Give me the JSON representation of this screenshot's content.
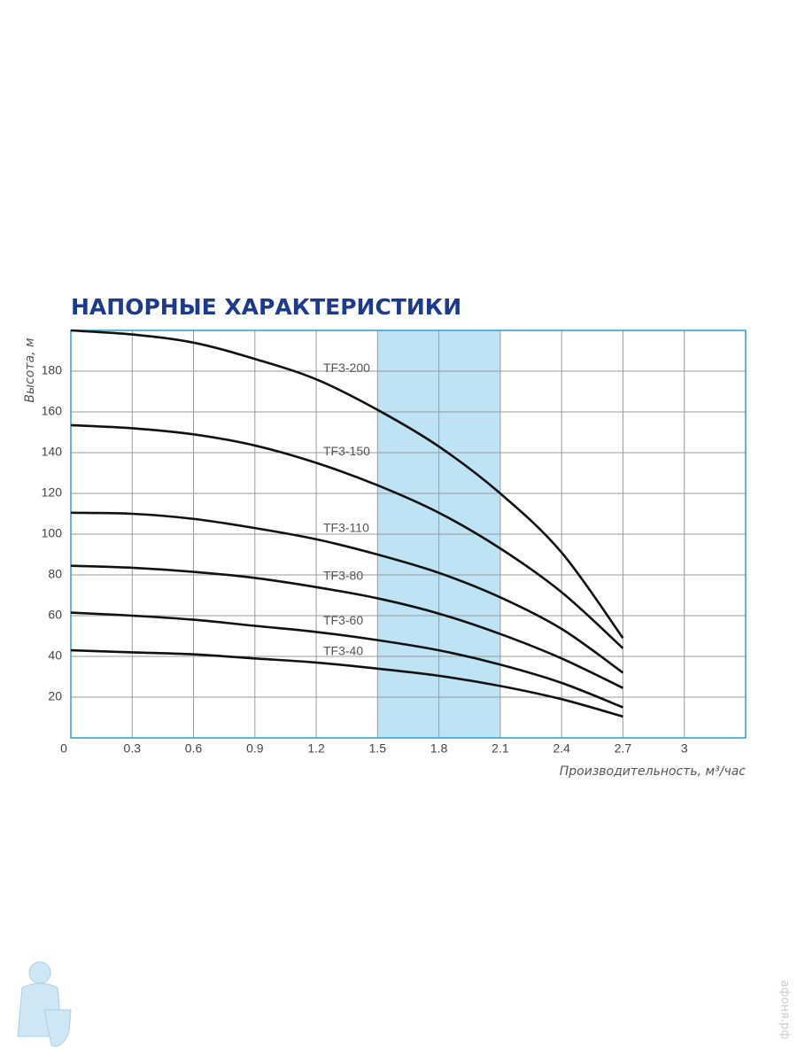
{
  "chart_data": {
    "type": "line",
    "title": "НАПОРНЫЕ ХАРАКТЕРИСТИКИ",
    "y_label": "Высота, м",
    "x_label": "Производительность, м³/час",
    "x": [
      0,
      0.3,
      0.6,
      0.9,
      1.2,
      1.5,
      1.8,
      2.1,
      2.4,
      2.7
    ],
    "series": [
      {
        "name": "TF3-200",
        "color": "#111111",
        "values": [
          200,
          198,
          194,
          186,
          176,
          161,
          143,
          120,
          91,
          49
        ]
      },
      {
        "name": "TF3-150",
        "color": "#111111",
        "values": [
          153.5,
          152,
          149,
          143.5,
          135,
          124,
          110.5,
          93,
          71.5,
          44
        ]
      },
      {
        "name": "TF3-110",
        "color": "#111111",
        "values": [
          110.5,
          110,
          107.5,
          103,
          97.5,
          90,
          81,
          69,
          53.5,
          32
        ]
      },
      {
        "name": "TF3-80",
        "color": "#111111",
        "values": [
          84.5,
          83.5,
          81.5,
          78.5,
          74,
          68.5,
          61,
          51,
          39,
          24.5
        ]
      },
      {
        "name": "TF3-60",
        "color": "#111111",
        "values": [
          61.5,
          60,
          58,
          55,
          52,
          48,
          43,
          36,
          27,
          15
        ]
      },
      {
        "name": "TF3-40",
        "color": "#111111",
        "values": [
          43,
          42,
          41,
          39,
          37,
          34,
          30.5,
          25.5,
          19,
          10.5
        ]
      }
    ],
    "highlight": [
      1.5,
      2.1
    ],
    "highlight_color": "#bde3f5",
    "xlim": [
      0,
      3.3
    ],
    "ylim": [
      0,
      200
    ],
    "xticks": [
      0,
      0.3,
      0.6,
      0.9,
      1.2,
      1.5,
      1.8,
      2.1,
      2.4,
      2.7,
      3
    ],
    "yticks": [
      20,
      40,
      60,
      80,
      100,
      120,
      140,
      160,
      180
    ],
    "ygrid": [
      20,
      40,
      60,
      80,
      100,
      120,
      140,
      160,
      180,
      200
    ],
    "grid": true
  },
  "watermark": "афоня.рф"
}
